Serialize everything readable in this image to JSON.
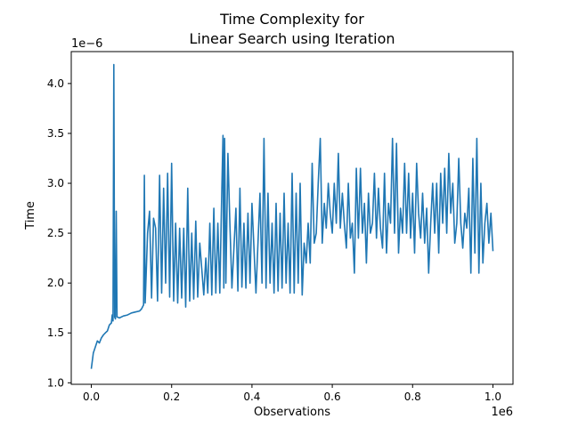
{
  "chart_data": {
    "type": "line",
    "title_lines": [
      "Time Complexity for",
      "Linear Search using Iteration"
    ],
    "xlabel": "Observations",
    "ylabel": "Time",
    "x_offset_label": "1e6",
    "y_offset_label": "1e−6",
    "xlim": [
      -0.05,
      1.05
    ],
    "ylim": [
      0.985,
      4.32
    ],
    "x_ticks": [
      0.0,
      0.2,
      0.4,
      0.6,
      0.8,
      1.0
    ],
    "x_tick_labels": [
      "0.0",
      "0.2",
      "0.4",
      "0.6",
      "0.8",
      "1.0"
    ],
    "y_ticks": [
      1.0,
      1.5,
      2.0,
      2.5,
      3.0,
      3.5,
      4.0
    ],
    "y_tick_labels": [
      "1.0",
      "1.5",
      "2.0",
      "2.5",
      "3.0",
      "3.5",
      "4.0"
    ],
    "grid": false,
    "series": [
      {
        "color": "#1f77b4",
        "points": [
          [
            0.0,
            1.14
          ],
          [
            0.005,
            1.3
          ],
          [
            0.01,
            1.36
          ],
          [
            0.015,
            1.42
          ],
          [
            0.02,
            1.4
          ],
          [
            0.025,
            1.45
          ],
          [
            0.03,
            1.48
          ],
          [
            0.035,
            1.5
          ],
          [
            0.04,
            1.52
          ],
          [
            0.045,
            1.58
          ],
          [
            0.05,
            1.6
          ],
          [
            0.052,
            1.68
          ],
          [
            0.054,
            1.62
          ],
          [
            0.056,
            4.19
          ],
          [
            0.058,
            1.66
          ],
          [
            0.06,
            1.64
          ],
          [
            0.062,
            2.72
          ],
          [
            0.064,
            1.66
          ],
          [
            0.07,
            1.65
          ],
          [
            0.08,
            1.67
          ],
          [
            0.09,
            1.68
          ],
          [
            0.1,
            1.7
          ],
          [
            0.11,
            1.71
          ],
          [
            0.12,
            1.72
          ],
          [
            0.125,
            1.74
          ],
          [
            0.13,
            1.78
          ],
          [
            0.132,
            3.08
          ],
          [
            0.134,
            1.8
          ],
          [
            0.14,
            2.5
          ],
          [
            0.145,
            2.72
          ],
          [
            0.15,
            1.85
          ],
          [
            0.155,
            2.65
          ],
          [
            0.16,
            2.55
          ],
          [
            0.165,
            1.82
          ],
          [
            0.17,
            3.08
          ],
          [
            0.175,
            1.9
          ],
          [
            0.18,
            2.95
          ],
          [
            0.185,
            2.0
          ],
          [
            0.19,
            3.1
          ],
          [
            0.195,
            1.86
          ],
          [
            0.2,
            3.2
          ],
          [
            0.205,
            1.82
          ],
          [
            0.21,
            2.6
          ],
          [
            0.215,
            1.8
          ],
          [
            0.22,
            2.55
          ],
          [
            0.225,
            1.85
          ],
          [
            0.23,
            2.55
          ],
          [
            0.235,
            1.76
          ],
          [
            0.24,
            2.95
          ],
          [
            0.245,
            1.82
          ],
          [
            0.25,
            2.5
          ],
          [
            0.255,
            1.84
          ],
          [
            0.26,
            2.62
          ],
          [
            0.265,
            1.86
          ],
          [
            0.27,
            2.4
          ],
          [
            0.28,
            1.88
          ],
          [
            0.285,
            2.25
          ],
          [
            0.29,
            1.9
          ],
          [
            0.295,
            2.6
          ],
          [
            0.3,
            1.88
          ],
          [
            0.305,
            2.75
          ],
          [
            0.31,
            1.9
          ],
          [
            0.315,
            2.6
          ],
          [
            0.32,
            1.9
          ],
          [
            0.325,
            2.95
          ],
          [
            0.328,
            3.48
          ],
          [
            0.33,
            1.95
          ],
          [
            0.332,
            3.45
          ],
          [
            0.335,
            2.0
          ],
          [
            0.34,
            3.3
          ],
          [
            0.345,
            2.6
          ],
          [
            0.35,
            1.95
          ],
          [
            0.36,
            2.75
          ],
          [
            0.365,
            1.92
          ],
          [
            0.37,
            2.95
          ],
          [
            0.375,
            1.96
          ],
          [
            0.38,
            2.6
          ],
          [
            0.385,
            1.95
          ],
          [
            0.39,
            2.7
          ],
          [
            0.395,
            2.0
          ],
          [
            0.4,
            2.8
          ],
          [
            0.41,
            1.9
          ],
          [
            0.42,
            2.9
          ],
          [
            0.425,
            2.0
          ],
          [
            0.43,
            3.45
          ],
          [
            0.435,
            1.95
          ],
          [
            0.44,
            2.9
          ],
          [
            0.445,
            2.0
          ],
          [
            0.45,
            2.6
          ],
          [
            0.455,
            1.9
          ],
          [
            0.46,
            2.8
          ],
          [
            0.465,
            1.92
          ],
          [
            0.47,
            2.7
          ],
          [
            0.475,
            1.95
          ],
          [
            0.48,
            2.9
          ],
          [
            0.485,
            2.0
          ],
          [
            0.49,
            2.6
          ],
          [
            0.495,
            1.9
          ],
          [
            0.5,
            3.1
          ],
          [
            0.505,
            1.9
          ],
          [
            0.51,
            2.9
          ],
          [
            0.515,
            2.0
          ],
          [
            0.52,
            3.0
          ],
          [
            0.525,
            1.88
          ],
          [
            0.53,
            2.4
          ],
          [
            0.535,
            2.2
          ],
          [
            0.54,
            2.6
          ],
          [
            0.545,
            2.2
          ],
          [
            0.55,
            3.2
          ],
          [
            0.555,
            2.4
          ],
          [
            0.56,
            2.5
          ],
          [
            0.565,
            3.0
          ],
          [
            0.57,
            3.45
          ],
          [
            0.575,
            2.4
          ],
          [
            0.58,
            2.8
          ],
          [
            0.585,
            2.55
          ],
          [
            0.59,
            3.0
          ],
          [
            0.595,
            2.7
          ],
          [
            0.6,
            2.5
          ],
          [
            0.605,
            3.0
          ],
          [
            0.61,
            2.6
          ],
          [
            0.615,
            3.3
          ],
          [
            0.62,
            2.55
          ],
          [
            0.625,
            2.9
          ],
          [
            0.63,
            2.6
          ],
          [
            0.635,
            2.35
          ],
          [
            0.64,
            3.0
          ],
          [
            0.645,
            2.45
          ],
          [
            0.65,
            2.6
          ],
          [
            0.655,
            2.1
          ],
          [
            0.66,
            3.15
          ],
          [
            0.665,
            2.45
          ],
          [
            0.67,
            3.15
          ],
          [
            0.675,
            2.5
          ],
          [
            0.68,
            2.8
          ],
          [
            0.685,
            2.2
          ],
          [
            0.69,
            2.9
          ],
          [
            0.695,
            2.5
          ],
          [
            0.7,
            2.6
          ],
          [
            0.705,
            3.1
          ],
          [
            0.71,
            2.45
          ],
          [
            0.715,
            2.95
          ],
          [
            0.72,
            2.55
          ],
          [
            0.725,
            2.35
          ],
          [
            0.73,
            3.1
          ],
          [
            0.735,
            2.3
          ],
          [
            0.74,
            2.8
          ],
          [
            0.745,
            2.6
          ],
          [
            0.75,
            3.45
          ],
          [
            0.755,
            2.5
          ],
          [
            0.76,
            3.4
          ],
          [
            0.765,
            2.3
          ],
          [
            0.77,
            2.75
          ],
          [
            0.775,
            2.5
          ],
          [
            0.78,
            3.2
          ],
          [
            0.785,
            2.5
          ],
          [
            0.79,
            3.1
          ],
          [
            0.795,
            2.45
          ],
          [
            0.8,
            2.9
          ],
          [
            0.805,
            2.3
          ],
          [
            0.81,
            3.2
          ],
          [
            0.815,
            2.7
          ],
          [
            0.82,
            2.45
          ],
          [
            0.825,
            2.9
          ],
          [
            0.83,
            2.4
          ],
          [
            0.835,
            2.75
          ],
          [
            0.84,
            2.1
          ],
          [
            0.845,
            2.6
          ],
          [
            0.85,
            3.0
          ],
          [
            0.855,
            2.5
          ],
          [
            0.86,
            3.0
          ],
          [
            0.865,
            2.3
          ],
          [
            0.87,
            3.1
          ],
          [
            0.875,
            2.6
          ],
          [
            0.88,
            3.15
          ],
          [
            0.885,
            2.5
          ],
          [
            0.89,
            3.3
          ],
          [
            0.895,
            2.7
          ],
          [
            0.9,
            3.0
          ],
          [
            0.905,
            2.4
          ],
          [
            0.91,
            2.6
          ],
          [
            0.915,
            3.25
          ],
          [
            0.92,
            2.6
          ],
          [
            0.925,
            2.35
          ],
          [
            0.93,
            2.7
          ],
          [
            0.935,
            2.55
          ],
          [
            0.94,
            2.95
          ],
          [
            0.945,
            2.1
          ],
          [
            0.95,
            3.25
          ],
          [
            0.955,
            2.3
          ],
          [
            0.96,
            3.45
          ],
          [
            0.965,
            2.1
          ],
          [
            0.97,
            3.0
          ],
          [
            0.975,
            2.2
          ],
          [
            0.98,
            2.6
          ],
          [
            0.985,
            2.8
          ],
          [
            0.99,
            2.4
          ],
          [
            0.995,
            2.7
          ],
          [
            1.0,
            2.32
          ]
        ]
      }
    ]
  }
}
